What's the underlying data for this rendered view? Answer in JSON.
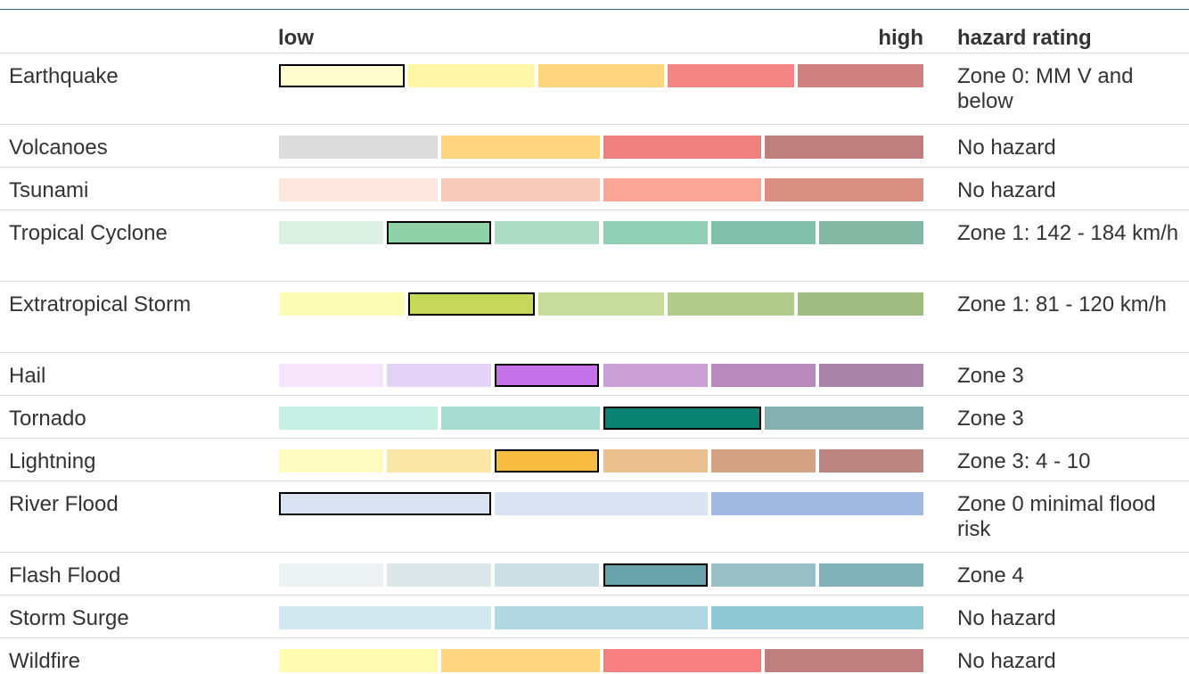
{
  "headers": {
    "low": "low",
    "high": "high",
    "rating": "hazard rating"
  },
  "rows": [
    {
      "name": "Earthquake",
      "rating": "Zone 0: MM V and below",
      "selected": 0,
      "colors": [
        "#fffdd0",
        "#fff6a8",
        "#ffd580",
        "#f28484",
        "#d18080"
      ]
    },
    {
      "name": "Volcanoes",
      "rating": "No hazard",
      "selected": null,
      "colors": [
        "#dcdcdc",
        "#ffd580",
        "#f08080",
        "#bf7f7f"
      ]
    },
    {
      "name": "Tsunami",
      "rating": "No hazard",
      "selected": null,
      "colors": [
        "#fde8e0",
        "#f7cbbb",
        "#fba598",
        "#d98f82"
      ]
    },
    {
      "name": "Tropical Cyclone",
      "rating": "Zone 1: 142 - 184 km/h",
      "selected": 1,
      "colors": [
        "#dcf0e4",
        "#90d2a8",
        "#acdcc6",
        "#92cfb7",
        "#82c2ac",
        "#83b7a4"
      ]
    },
    {
      "name": "Extratropical Storm",
      "rating": "Zone 1: 81 - 120 km/h",
      "selected": 1,
      "colors": [
        "#fdfcb6",
        "#c6d95a",
        "#c7dc9e",
        "#b0cb8c",
        "#9fbd82"
      ]
    },
    {
      "name": "Hail",
      "rating": "Zone 3",
      "selected": 2,
      "colors": [
        "#f5e4fa",
        "#e3d4f7",
        "#c471ea",
        "#caa0d6",
        "#b98abc",
        "#a884a8"
      ]
    },
    {
      "name": "Tornado",
      "rating": "Zone 3",
      "selected": 2,
      "colors": [
        "#c6f0e4",
        "#a6dcd2",
        "#0b8373",
        "#84b0b0"
      ]
    },
    {
      "name": "Lightning",
      "rating": "Zone 3:   4 - 10",
      "selected": 2,
      "colors": [
        "#fefcc0",
        "#fbe7a6",
        "#f7bc40",
        "#ebc08f",
        "#d3a184",
        "#bb8581"
      ]
    },
    {
      "name": "River Flood",
      "rating": "Zone 0 minimal flood risk",
      "selected": 0,
      "colors": [
        "#d9e3f1",
        "#d9e3f1",
        "#a0b9e1"
      ]
    },
    {
      "name": "Flash Flood",
      "rating": "Zone 4",
      "selected": 3,
      "colors": [
        "#ecf1f3",
        "#dde7ea",
        "#ccdfe2",
        "#67a3a9",
        "#98c0c5",
        "#80b1b7"
      ]
    },
    {
      "name": "Storm Surge",
      "rating": "No hazard",
      "selected": null,
      "colors": [
        "#d1e8f1",
        "#b1d7e3",
        "#8fc7d5"
      ]
    },
    {
      "name": "Wildfire",
      "rating": "No hazard",
      "selected": null,
      "colors": [
        "#fefcb0",
        "#ffd580",
        "#f88080",
        "#bf7f7f"
      ]
    }
  ],
  "chart_data": {
    "type": "table",
    "columns": [
      "",
      "low",
      "high",
      "hazard rating"
    ],
    "rows": [
      {
        "hazard": "Earthquake",
        "levels": 5,
        "selected_level": 1,
        "hazard_rating": "Zone 0: MM V and below"
      },
      {
        "hazard": "Volcanoes",
        "levels": 4,
        "selected_level": null,
        "hazard_rating": "No hazard"
      },
      {
        "hazard": "Tsunami",
        "levels": 4,
        "selected_level": null,
        "hazard_rating": "No hazard"
      },
      {
        "hazard": "Tropical Cyclone",
        "levels": 6,
        "selected_level": 2,
        "hazard_rating": "Zone 1: 142 - 184 km/h"
      },
      {
        "hazard": "Extratropical Storm",
        "levels": 5,
        "selected_level": 2,
        "hazard_rating": "Zone 1: 81 - 120 km/h"
      },
      {
        "hazard": "Hail",
        "levels": 6,
        "selected_level": 3,
        "hazard_rating": "Zone 3"
      },
      {
        "hazard": "Tornado",
        "levels": 4,
        "selected_level": 3,
        "hazard_rating": "Zone 3"
      },
      {
        "hazard": "Lightning",
        "levels": 6,
        "selected_level": 3,
        "hazard_rating": "Zone 3:   4 - 10"
      },
      {
        "hazard": "River Flood",
        "levels": 3,
        "selected_level": 1,
        "hazard_rating": "Zone 0 minimal flood risk"
      },
      {
        "hazard": "Flash Flood",
        "levels": 6,
        "selected_level": 4,
        "hazard_rating": "Zone 4"
      },
      {
        "hazard": "Storm Surge",
        "levels": 3,
        "selected_level": null,
        "hazard_rating": "No hazard"
      },
      {
        "hazard": "Wildfire",
        "levels": 4,
        "selected_level": null,
        "hazard_rating": "No hazard"
      }
    ]
  }
}
